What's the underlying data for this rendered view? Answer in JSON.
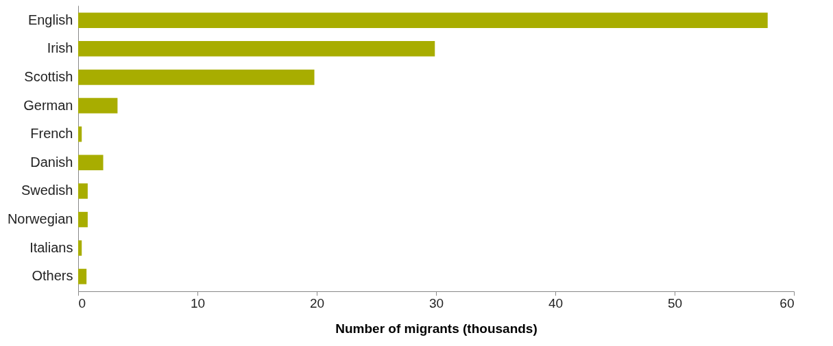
{
  "chart_data": {
    "type": "bar",
    "orientation": "horizontal",
    "xlabel": "Number of migrants (thousands)",
    "categories": [
      "English",
      "Irish",
      "Scottish",
      "German",
      "French",
      "Danish",
      "Swedish",
      "Norwegian",
      "Italians",
      "Others"
    ],
    "values": [
      57.8,
      29.9,
      19.8,
      3.3,
      0.3,
      2.1,
      0.8,
      0.8,
      0.3,
      0.7
    ],
    "color": "#a8ad00",
    "xlim": [
      0,
      60
    ],
    "xticks": [
      0,
      10,
      20,
      30,
      40,
      50,
      60
    ]
  }
}
